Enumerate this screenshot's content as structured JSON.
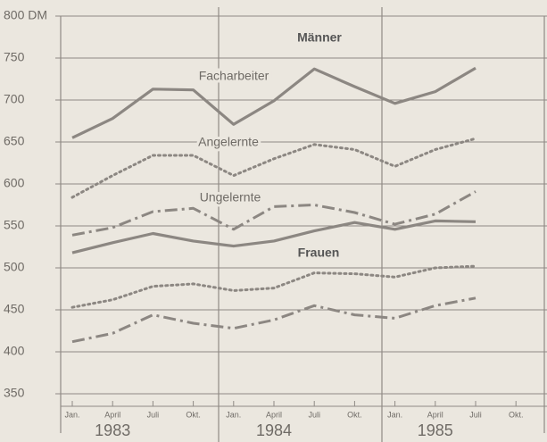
{
  "chart_data": {
    "type": "line",
    "categories": [
      "Jan.",
      "April",
      "Juli",
      "Okt.",
      "Jan.",
      "April",
      "Juli",
      "Okt.",
      "Jan.",
      "April",
      "Juli",
      "Okt."
    ],
    "year_labels": [
      "1983",
      "1984",
      "1985"
    ],
    "ylim": [
      350,
      800
    ],
    "yticks": [
      350,
      400,
      450,
      500,
      550,
      600,
      650,
      700,
      750,
      {
        "value": 800,
        "label": "800 DM"
      }
    ],
    "grid": true,
    "annotations": [
      "Männer",
      "Facharbeiter",
      "Angelernte",
      "Ungelernte",
      "Frauen"
    ],
    "series": [
      {
        "color": "#8c8782",
        "style": "solid",
        "values": [
          655,
          678,
          713,
          712,
          671,
          699,
          737,
          716,
          696,
          710,
          738,
          null
        ]
      },
      {
        "color": "#8c8782",
        "style": "dotted",
        "values": [
          584,
          610,
          634,
          634,
          610,
          630,
          647,
          641,
          621,
          641,
          654,
          null
        ]
      },
      {
        "color": "#8c8782",
        "style": "dashdot",
        "values": [
          539,
          548,
          567,
          571,
          546,
          573,
          575,
          566,
          552,
          564,
          591,
          null
        ]
      },
      {
        "color": "#8c8782",
        "style": "solid",
        "values": [
          518,
          530,
          541,
          532,
          526,
          532,
          544,
          554,
          546,
          556,
          555,
          null
        ]
      },
      {
        "color": "#8c8782",
        "style": "dotted",
        "values": [
          453,
          462,
          478,
          481,
          473,
          476,
          494,
          493,
          489,
          500,
          502,
          null
        ]
      },
      {
        "color": "#8c8782",
        "style": "dashdot",
        "values": [
          412,
          422,
          444,
          434,
          428,
          438,
          455,
          444,
          440,
          455,
          464,
          null
        ]
      }
    ]
  }
}
